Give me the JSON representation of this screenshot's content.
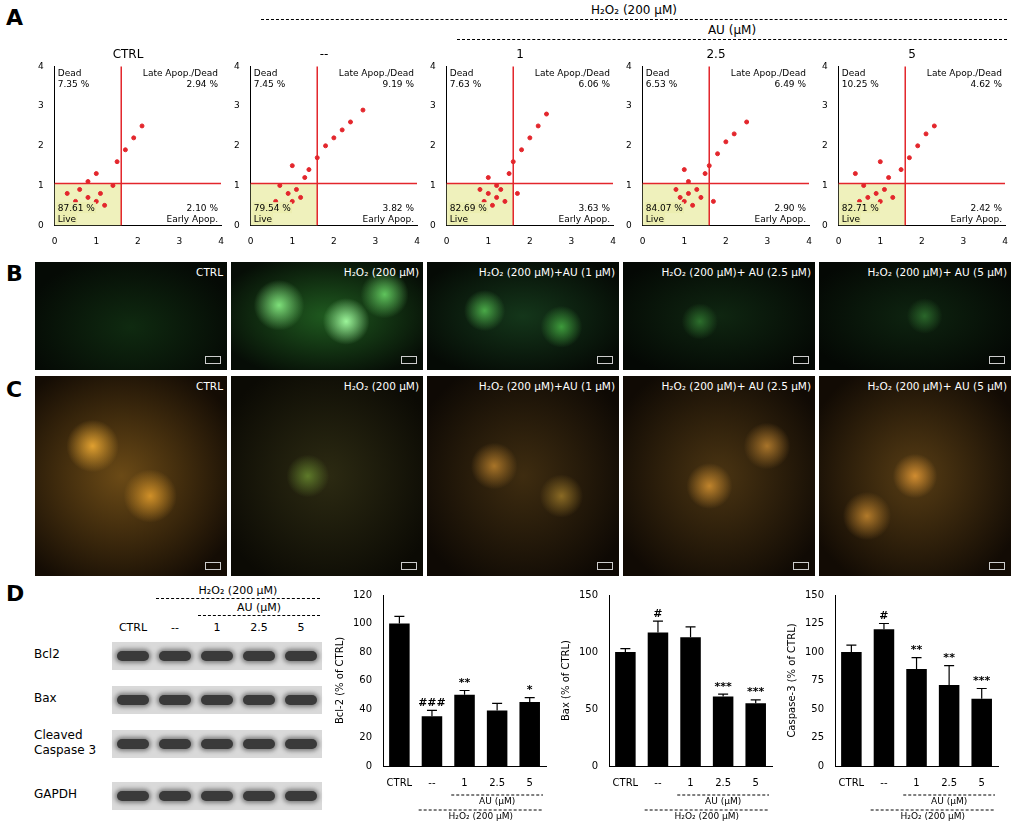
{
  "panel_letters": [
    "A",
    "B",
    "C",
    "D"
  ],
  "panel_A_headers": [
    {
      "label": "H₂O₂ (200 μM)",
      "charts": [
        "--",
        "1",
        "2.5",
        "5"
      ]
    },
    {
      "label": "AU (μM)",
      "charts": [
        "1",
        "2.5",
        "5"
      ]
    }
  ],
  "chart_data": [
    {
      "type": "scatter",
      "title": "CTRL",
      "color": "#e3262c",
      "grid": false,
      "x": [
        0.5,
        0.7,
        0.8,
        0.9,
        1.0,
        0.6,
        1.1,
        0.8,
        1.2,
        1.0,
        1.4,
        1.5,
        1.7,
        1.9,
        2.1,
        0.3
      ],
      "values": [
        0.6,
        0.5,
        0.7,
        0.4,
        0.6,
        0.9,
        0.8,
        1.1,
        0.5,
        1.3,
        1.0,
        1.6,
        1.9,
        2.2,
        2.5,
        0.8
      ],
      "xlim": [
        0,
        4
      ],
      "ylim": [
        0,
        4
      ],
      "xticks": [
        0,
        1,
        2,
        3,
        4
      ],
      "yticks": [
        0,
        1,
        2,
        3,
        4
      ],
      "gate": {
        "x": 1.6,
        "y": 1.05
      },
      "quadrants": {
        "names": [
          "Dead",
          "Late Apop./Dead",
          "Live",
          "Early Apop."
        ],
        "values": [
          7.35,
          2.94,
          87.61,
          2.1
        ],
        "value_labels": [
          "7.35 %",
          "2.94 %",
          "87.61 %",
          "2.10 %"
        ]
      }
    },
    {
      "type": "scatter",
      "title": "--",
      "color": "#e3262c",
      "grid": false,
      "x": [
        0.6,
        0.8,
        0.9,
        1.0,
        1.1,
        0.7,
        1.2,
        1.3,
        1.4,
        1.6,
        1.8,
        2.0,
        2.2,
        2.4,
        2.7,
        1.0
      ],
      "values": [
        0.6,
        0.5,
        0.8,
        0.6,
        0.9,
        1.0,
        0.7,
        1.2,
        1.4,
        1.7,
        2.0,
        2.2,
        2.4,
        2.6,
        2.9,
        1.5
      ],
      "xlim": [
        0,
        4
      ],
      "ylim": [
        0,
        4
      ],
      "xticks": [
        0,
        1,
        2,
        3,
        4
      ],
      "yticks": [
        0,
        1,
        2,
        3,
        4
      ],
      "gate": {
        "x": 1.6,
        "y": 1.05
      },
      "quadrants": {
        "names": [
          "Dead",
          "Late Apop./Dead",
          "Live",
          "Early Apop."
        ],
        "values": [
          7.45,
          9.19,
          79.54,
          3.82
        ],
        "value_labels": [
          "7.45 %",
          "9.19 %",
          "79.54 %",
          "3.82 %"
        ]
      }
    },
    {
      "type": "scatter",
      "title": "1",
      "color": "#e3262c",
      "grid": false,
      "x": [
        0.9,
        1.0,
        1.1,
        1.2,
        1.3,
        1.0,
        1.4,
        1.5,
        1.6,
        1.8,
        2.0,
        2.2,
        2.4,
        1.2,
        0.8,
        1.7
      ],
      "values": [
        0.6,
        0.8,
        0.5,
        0.7,
        0.9,
        1.2,
        0.6,
        1.3,
        1.6,
        1.9,
        2.2,
        2.5,
        2.8,
        1.0,
        0.9,
        0.8
      ],
      "xlim": [
        0,
        4
      ],
      "ylim": [
        0,
        4
      ],
      "xticks": [
        0,
        1,
        2,
        3,
        4
      ],
      "yticks": [
        0,
        1,
        2,
        3,
        4
      ],
      "gate": {
        "x": 1.6,
        "y": 1.05
      },
      "quadrants": {
        "names": [
          "Dead",
          "Late Apop./Dead",
          "Live",
          "Early Apop."
        ],
        "values": [
          7.63,
          6.06,
          82.69,
          3.63
        ],
        "value_labels": [
          "7.63 %",
          "6.06 %",
          "82.69 %",
          "3.63 %"
        ]
      }
    },
    {
      "type": "scatter",
      "title": "2.5",
      "color": "#e3262c",
      "grid": false,
      "x": [
        0.9,
        1.0,
        1.1,
        1.2,
        1.3,
        1.1,
        1.4,
        1.5,
        1.6,
        1.8,
        2.0,
        2.2,
        2.5,
        1.0,
        0.8,
        1.7
      ],
      "values": [
        0.7,
        0.6,
        0.8,
        0.5,
        0.9,
        1.1,
        0.7,
        1.3,
        1.5,
        1.8,
        2.1,
        2.3,
        2.6,
        1.4,
        0.9,
        0.6
      ],
      "xlim": [
        0,
        4
      ],
      "ylim": [
        0,
        4
      ],
      "xticks": [
        0,
        1,
        2,
        3,
        4
      ],
      "yticks": [
        0,
        1,
        2,
        3,
        4
      ],
      "gate": {
        "x": 1.6,
        "y": 1.05
      },
      "quadrants": {
        "names": [
          "Dead",
          "Late Apop./Dead",
          "Live",
          "Early Apop."
        ],
        "values": [
          6.53,
          6.49,
          84.07,
          2.9
        ],
        "value_labels": [
          "6.53 %",
          "6.49 %",
          "84.07 %",
          "2.90 %"
        ]
      }
    },
    {
      "type": "scatter",
      "title": "5",
      "color": "#e3262c",
      "grid": false,
      "x": [
        0.5,
        0.7,
        0.8,
        0.9,
        1.0,
        0.6,
        1.1,
        1.2,
        1.3,
        1.5,
        1.7,
        1.9,
        2.1,
        2.3,
        0.4,
        1.0
      ],
      "values": [
        0.6,
        0.7,
        0.5,
        0.8,
        0.6,
        1.0,
        0.9,
        1.2,
        0.7,
        1.4,
        1.7,
        2.0,
        2.3,
        2.5,
        1.3,
        1.6
      ],
      "xlim": [
        0,
        4
      ],
      "ylim": [
        0,
        4
      ],
      "xticks": [
        0,
        1,
        2,
        3,
        4
      ],
      "yticks": [
        0,
        1,
        2,
        3,
        4
      ],
      "gate": {
        "x": 1.6,
        "y": 1.05
      },
      "quadrants": {
        "names": [
          "Dead",
          "Late Apop./Dead",
          "Live",
          "Early Apop."
        ],
        "values": [
          10.25,
          4.62,
          82.71,
          2.42
        ],
        "value_labels": [
          "10.25 %",
          "4.62 %",
          "82.71 %",
          "2.42 %"
        ]
      }
    },
    {
      "type": "bar",
      "y_label": "Bcl-2 (% of CTRL)",
      "color": "#000000",
      "grid": false,
      "categories": [
        "CTRL",
        "--",
        "1",
        "2.5",
        "5"
      ],
      "values": [
        100,
        35,
        50,
        39,
        45
      ],
      "errors": [
        5,
        4,
        3,
        5,
        3
      ],
      "significance": [
        null,
        "###",
        "**",
        null,
        "*"
      ],
      "ylim": [
        0,
        120
      ],
      "yticks": [
        0,
        20,
        40,
        60,
        80,
        100,
        120
      ],
      "x_groups": [
        {
          "label": "AU (μM)",
          "categories": [
            "1",
            "2.5",
            "5"
          ]
        },
        {
          "label": "H₂O₂ (200 μM)",
          "categories": [
            "--",
            "1",
            "2.5",
            "5"
          ]
        }
      ]
    },
    {
      "type": "bar",
      "y_label": "Bax (% of CTRL)",
      "color": "#000000",
      "grid": false,
      "categories": [
        "CTRL",
        "--",
        "1",
        "2.5",
        "5"
      ],
      "values": [
        100,
        117,
        113,
        61,
        55
      ],
      "errors": [
        3,
        10,
        9,
        2,
        3
      ],
      "significance": [
        null,
        "#",
        null,
        "***",
        "***"
      ],
      "ylim": [
        0,
        150
      ],
      "yticks": [
        0,
        50,
        100,
        150
      ],
      "x_groups": [
        {
          "label": "AU (μM)",
          "categories": [
            "1",
            "2.5",
            "5"
          ]
        },
        {
          "label": "H₂O₂ (200 μM)",
          "categories": [
            "--",
            "1",
            "2.5",
            "5"
          ]
        }
      ]
    },
    {
      "type": "bar",
      "y_label": "Caspase-3 (% of CTRL)",
      "color": "#000000",
      "grid": false,
      "categories": [
        "CTRL",
        "--",
        "1",
        "2.5",
        "5"
      ],
      "values": [
        100,
        120,
        85,
        71,
        59
      ],
      "errors": [
        6,
        5,
        10,
        17,
        9
      ],
      "significance": [
        null,
        "#",
        "**",
        "**",
        "***"
      ],
      "ylim": [
        0,
        150
      ],
      "yticks": [
        0,
        25,
        50,
        75,
        100,
        125,
        150
      ],
      "x_groups": [
        {
          "label": "AU (μM)",
          "categories": [
            "1",
            "2.5",
            "5"
          ]
        },
        {
          "label": "H₂O₂ (200 μM)",
          "categories": [
            "--",
            "1",
            "2.5",
            "5"
          ]
        }
      ]
    }
  ],
  "images": {
    "B": [
      "CTRL",
      "H₂O₂ (200 μM)",
      "H₂O₂ (200 μM)+AU (1 μM)",
      "H₂O₂ (200 μM)+ AU (2.5 μM)",
      "H₂O₂ (200 μM)+ AU (5 μM)"
    ],
    "C": [
      "CTRL",
      "H₂O₂ (200 μM)",
      "H₂O₂ (200 μM)+AU (1 μM)",
      "H₂O₂ (200 μM)+ AU (2.5 μM)",
      "H₂O₂ (200 μM)+ AU (5 μM)"
    ]
  },
  "blot": {
    "lanes": [
      "CTRL",
      "--",
      "1",
      "2.5",
      "5"
    ],
    "groups": [
      {
        "label": "H₂O₂ (200 μM)",
        "lanes": [
          "--",
          "1",
          "2.5",
          "5"
        ]
      },
      {
        "label": "AU (μM)",
        "lanes": [
          "1",
          "2.5",
          "5"
        ]
      }
    ],
    "rows": [
      "Bcl2",
      "Bax",
      "Cleaved Caspase 3",
      "GAPDH"
    ]
  }
}
